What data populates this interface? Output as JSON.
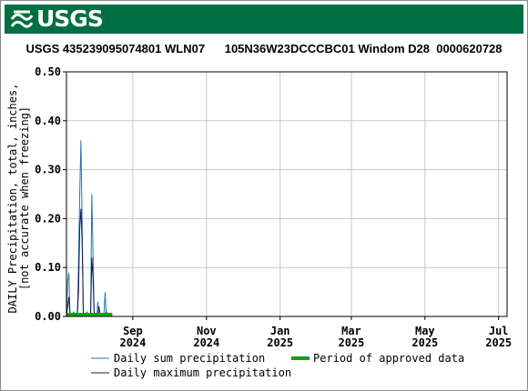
{
  "header": {
    "logo_text": "USGS",
    "logo_icon": "usgs-wave-icon",
    "brand_color": "#006f41"
  },
  "chart_data": {
    "type": "line",
    "title": "USGS 435239095074801 WLN07      105N36W23DCCCBC01 Windom D28  0000620728",
    "ylabel_line1": "DAILY Precipitation, total, inches,",
    "ylabel_line2": "[not accurate when freezing]",
    "xlabel": "",
    "ylim": [
      0,
      0.5
    ],
    "y_ticks": [
      "0.00",
      "0.10",
      "0.20",
      "0.30",
      "0.40",
      "0.50"
    ],
    "x_range": [
      "2024-07-08",
      "2025-07-08"
    ],
    "x_ticks": [
      {
        "month": "Sep",
        "year": "2024",
        "date": "2024-09-01"
      },
      {
        "month": "Nov",
        "year": "2024",
        "date": "2024-11-01"
      },
      {
        "month": "Jan",
        "year": "2025",
        "date": "2025-01-01"
      },
      {
        "month": "Mar",
        "year": "2025",
        "date": "2025-03-01"
      },
      {
        "month": "May",
        "year": "2025",
        "date": "2025-05-01"
      },
      {
        "month": "Jul",
        "year": "2025",
        "date": "2025-07-01"
      }
    ],
    "grid": true,
    "series": [
      {
        "name": "Daily sum precipitation",
        "color": "#1f77b4",
        "points": [
          [
            "2024-07-08",
            0.0
          ],
          [
            "2024-07-09",
            0.07
          ],
          [
            "2024-07-10",
            0.09
          ],
          [
            "2024-07-11",
            0.0
          ],
          [
            "2024-07-13",
            0.0
          ],
          [
            "2024-07-14",
            0.01
          ],
          [
            "2024-07-15",
            0.0
          ],
          [
            "2024-07-17",
            0.0
          ],
          [
            "2024-07-18",
            0.11
          ],
          [
            "2024-07-19",
            0.25
          ],
          [
            "2024-07-20",
            0.36
          ],
          [
            "2024-07-21",
            0.19
          ],
          [
            "2024-07-22",
            0.0
          ],
          [
            "2024-07-24",
            0.0
          ],
          [
            "2024-07-25",
            0.01
          ],
          [
            "2024-07-26",
            0.0
          ],
          [
            "2024-07-28",
            0.0
          ],
          [
            "2024-07-29",
            0.25
          ],
          [
            "2024-07-30",
            0.13
          ],
          [
            "2024-07-31",
            0.0
          ],
          [
            "2024-08-02",
            0.0
          ],
          [
            "2024-08-03",
            0.03
          ],
          [
            "2024-08-04",
            0.0
          ],
          [
            "2024-08-08",
            0.0
          ],
          [
            "2024-08-09",
            0.05
          ],
          [
            "2024-08-10",
            0.0
          ],
          [
            "2024-08-14",
            0.0
          ]
        ]
      },
      {
        "name": "Daily maximum precipitation",
        "color": "#1a1a4e",
        "points": [
          [
            "2024-07-08",
            0.0
          ],
          [
            "2024-07-09",
            0.02
          ],
          [
            "2024-07-10",
            0.04
          ],
          [
            "2024-07-11",
            0.0
          ],
          [
            "2024-07-17",
            0.0
          ],
          [
            "2024-07-18",
            0.05
          ],
          [
            "2024-07-19",
            0.18
          ],
          [
            "2024-07-20",
            0.22
          ],
          [
            "2024-07-21",
            0.15
          ],
          [
            "2024-07-22",
            0.0
          ],
          [
            "2024-07-28",
            0.0
          ],
          [
            "2024-07-29",
            0.12
          ],
          [
            "2024-07-30",
            0.08
          ],
          [
            "2024-07-31",
            0.0
          ],
          [
            "2024-08-03",
            0.0
          ],
          [
            "2024-08-04",
            0.02
          ],
          [
            "2024-08-05",
            0.0
          ],
          [
            "2024-08-09",
            0.0
          ],
          [
            "2024-08-10",
            0.01
          ],
          [
            "2024-08-11",
            0.0
          ]
        ]
      }
    ],
    "approved_period": {
      "name": "Period of approved data",
      "color": "#13a10e",
      "start": "2024-07-08",
      "end": "2024-08-15"
    }
  }
}
